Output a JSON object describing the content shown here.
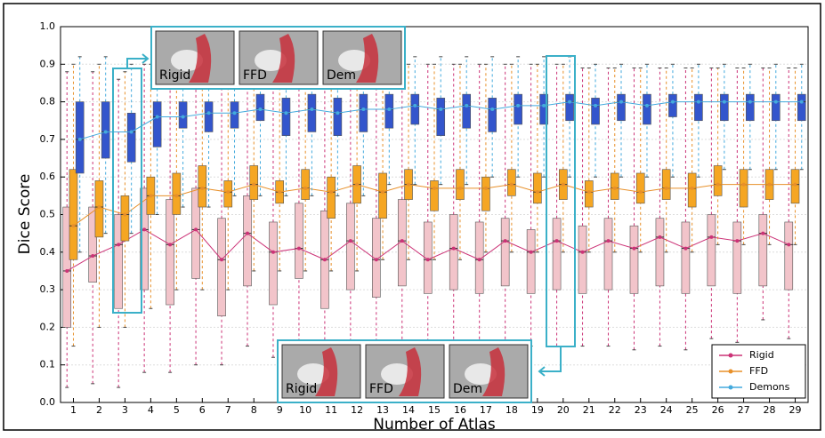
{
  "chart_data": {
    "type": "box",
    "x_label": "Number of Atlas",
    "y_label": "Dice Score",
    "x": [
      1,
      2,
      3,
      4,
      5,
      6,
      7,
      8,
      9,
      10,
      11,
      12,
      13,
      14,
      15,
      16,
      17,
      18,
      19,
      20,
      21,
      22,
      23,
      24,
      25,
      26,
      27,
      28,
      29
    ],
    "xlim": [
      0.5,
      29.5
    ],
    "xticks": [
      1,
      2,
      3,
      4,
      5,
      6,
      7,
      8,
      9,
      10,
      11,
      12,
      13,
      14,
      15,
      16,
      17,
      18,
      19,
      20,
      21,
      22,
      23,
      24,
      25,
      26,
      27,
      28,
      29
    ],
    "ylim": [
      0,
      1
    ],
    "yticks": [
      {
        "value": 0,
        "label": "0.0"
      },
      0.1,
      0.2,
      0.3,
      0.4,
      0.5,
      0.6,
      0.7,
      0.8,
      0.9,
      {
        "value": 1,
        "label": "1.0"
      }
    ],
    "grid": true,
    "legend": "lower right",
    "series": [
      {
        "name": "Rigid",
        "color": "#cc3377",
        "fill": "#f2c4ca",
        "whislo": [
          0.04,
          0.05,
          0.04,
          0.08,
          0.08,
          0.1,
          0.1,
          0.15,
          0.12,
          0.12,
          0.11,
          0.12,
          0.12,
          0.14,
          0.12,
          0.14,
          0.14,
          0.14,
          0.15,
          0.15,
          0.15,
          0.15,
          0.14,
          0.15,
          0.14,
          0.17,
          0.16,
          0.22,
          0.17
        ],
        "q1": [
          0.2,
          0.32,
          0.25,
          0.3,
          0.26,
          0.33,
          0.23,
          0.31,
          0.26,
          0.33,
          0.25,
          0.3,
          0.28,
          0.31,
          0.29,
          0.3,
          0.29,
          0.31,
          0.29,
          0.3,
          0.29,
          0.3,
          0.29,
          0.31,
          0.29,
          0.31,
          0.29,
          0.31,
          0.3
        ],
        "median": [
          0.35,
          0.39,
          0.42,
          0.46,
          0.42,
          0.46,
          0.38,
          0.45,
          0.4,
          0.41,
          0.38,
          0.43,
          0.38,
          0.43,
          0.38,
          0.41,
          0.38,
          0.43,
          0.4,
          0.43,
          0.4,
          0.43,
          0.41,
          0.44,
          0.41,
          0.44,
          0.43,
          0.45,
          0.42
        ],
        "q3": [
          0.52,
          0.52,
          0.5,
          0.57,
          0.54,
          0.57,
          0.49,
          0.55,
          0.48,
          0.53,
          0.51,
          0.53,
          0.49,
          0.54,
          0.48,
          0.5,
          0.48,
          0.49,
          0.46,
          0.49,
          0.47,
          0.49,
          0.47,
          0.49,
          0.48,
          0.5,
          0.48,
          0.5,
          0.48
        ],
        "whishi": [
          0.88,
          0.88,
          0.86,
          0.9,
          0.9,
          0.9,
          0.9,
          0.9,
          0.9,
          0.9,
          0.9,
          0.9,
          0.9,
          0.9,
          0.9,
          0.9,
          0.9,
          0.9,
          0.9,
          0.9,
          0.89,
          0.89,
          0.89,
          0.89,
          0.89,
          0.89,
          0.89,
          0.89,
          0.89
        ]
      },
      {
        "name": "FFD",
        "color": "#e8902a",
        "fill": "#f5a623",
        "whislo": [
          0.15,
          0.2,
          0.2,
          0.25,
          0.3,
          0.3,
          0.3,
          0.35,
          0.35,
          0.35,
          0.35,
          0.35,
          0.38,
          0.38,
          0.38,
          0.38,
          0.4,
          0.4,
          0.4,
          0.4,
          0.4,
          0.4,
          0.4,
          0.4,
          0.4,
          0.42,
          0.42,
          0.42,
          0.42
        ],
        "q1": [
          0.38,
          0.44,
          0.43,
          0.5,
          0.5,
          0.52,
          0.52,
          0.54,
          0.53,
          0.54,
          0.49,
          0.53,
          0.49,
          0.54,
          0.51,
          0.54,
          0.51,
          0.55,
          0.53,
          0.54,
          0.52,
          0.54,
          0.53,
          0.54,
          0.52,
          0.55,
          0.52,
          0.54,
          0.53
        ],
        "median": [
          0.47,
          0.52,
          0.5,
          0.55,
          0.55,
          0.57,
          0.56,
          0.58,
          0.56,
          0.57,
          0.56,
          0.58,
          0.56,
          0.58,
          0.57,
          0.57,
          0.57,
          0.58,
          0.56,
          0.58,
          0.56,
          0.57,
          0.56,
          0.57,
          0.57,
          0.58,
          0.58,
          0.58,
          0.58
        ],
        "q3": [
          0.62,
          0.59,
          0.55,
          0.6,
          0.61,
          0.63,
          0.59,
          0.63,
          0.59,
          0.62,
          0.6,
          0.63,
          0.61,
          0.62,
          0.59,
          0.62,
          0.6,
          0.62,
          0.61,
          0.62,
          0.59,
          0.61,
          0.61,
          0.62,
          0.61,
          0.63,
          0.62,
          0.62,
          0.62
        ],
        "whishi": [
          0.9,
          0.9,
          0.88,
          0.9,
          0.9,
          0.9,
          0.9,
          0.9,
          0.9,
          0.9,
          0.9,
          0.9,
          0.9,
          0.9,
          0.9,
          0.9,
          0.9,
          0.9,
          0.9,
          0.9,
          0.89,
          0.89,
          0.89,
          0.89,
          0.89,
          0.89,
          0.89,
          0.89,
          0.89
        ]
      },
      {
        "name": "Demons",
        "color": "#44aadd",
        "fill": "#3355cc",
        "whislo": [
          0.4,
          0.45,
          0.45,
          0.5,
          0.52,
          0.52,
          0.55,
          0.55,
          0.55,
          0.55,
          0.55,
          0.55,
          0.58,
          0.58,
          0.58,
          0.58,
          0.6,
          0.6,
          0.6,
          0.6,
          0.6,
          0.6,
          0.6,
          0.6,
          0.6,
          0.62,
          0.62,
          0.62,
          0.62
        ],
        "q1": [
          0.61,
          0.65,
          0.64,
          0.68,
          0.73,
          0.72,
          0.73,
          0.75,
          0.71,
          0.72,
          0.71,
          0.72,
          0.73,
          0.74,
          0.71,
          0.73,
          0.72,
          0.74,
          0.74,
          0.75,
          0.74,
          0.75,
          0.74,
          0.76,
          0.75,
          0.75,
          0.75,
          0.75,
          0.75
        ],
        "median": [
          0.7,
          0.72,
          0.72,
          0.76,
          0.76,
          0.77,
          0.77,
          0.78,
          0.77,
          0.78,
          0.77,
          0.78,
          0.78,
          0.79,
          0.78,
          0.79,
          0.78,
          0.79,
          0.79,
          0.8,
          0.79,
          0.8,
          0.79,
          0.8,
          0.8,
          0.8,
          0.8,
          0.8,
          0.8
        ],
        "q3": [
          0.8,
          0.8,
          0.77,
          0.8,
          0.8,
          0.8,
          0.8,
          0.82,
          0.81,
          0.82,
          0.81,
          0.82,
          0.82,
          0.82,
          0.81,
          0.82,
          0.81,
          0.82,
          0.82,
          0.82,
          0.81,
          0.82,
          0.82,
          0.82,
          0.82,
          0.82,
          0.82,
          0.82,
          0.82
        ],
        "whishi": [
          0.92,
          0.92,
          0.9,
          0.92,
          0.92,
          0.92,
          0.92,
          0.92,
          0.92,
          0.92,
          0.92,
          0.92,
          0.92,
          0.92,
          0.92,
          0.92,
          0.92,
          0.92,
          0.92,
          0.92,
          0.9,
          0.9,
          0.9,
          0.9,
          0.9,
          0.9,
          0.9,
          0.9,
          0.9
        ]
      }
    ],
    "insets": [
      {
        "labels": [
          "Rigid",
          "FFD",
          "Dem"
        ]
      },
      {
        "labels": [
          "Rigid",
          "FFD",
          "Dem"
        ]
      }
    ]
  }
}
